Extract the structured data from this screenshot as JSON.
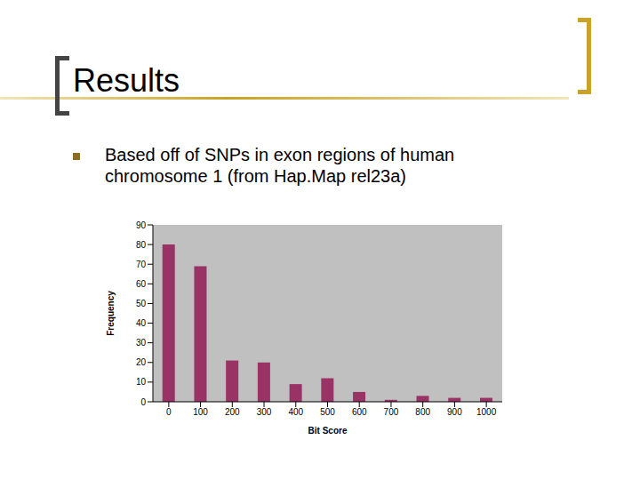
{
  "slide": {
    "title": "Results",
    "bullets": [
      "Based off of SNPs in exon regions of human chromosome 1 (from Hap.Map rel23a)"
    ]
  },
  "chart_data": {
    "type": "bar",
    "x_label": "Bit Score",
    "y_label": "Frequency",
    "categories": [
      0,
      100,
      200,
      300,
      400,
      500,
      600,
      700,
      800,
      900,
      1000
    ],
    "values": [
      80,
      69,
      21,
      20,
      9,
      12,
      5,
      1,
      3,
      2,
      2
    ],
    "color": "#993366",
    "ylim": [
      0,
      90
    ],
    "yticks": [
      0,
      10,
      20,
      30,
      40,
      50,
      60,
      70,
      80,
      90
    ],
    "grid": false,
    "data_labels": false
  }
}
